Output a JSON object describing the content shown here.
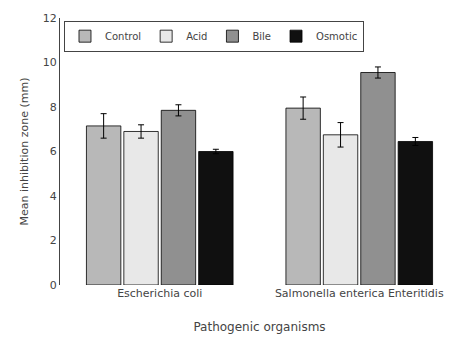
{
  "chart_data": {
    "type": "bar",
    "categories": [
      "Escherichia coli",
      "Salmonella enterica Enteritidis"
    ],
    "series": [
      {
        "name": "Control",
        "color": "#b8b8b8",
        "values": [
          7.15,
          7.95
        ],
        "errors": [
          0.55,
          0.5
        ]
      },
      {
        "name": "Acid",
        "color": "#e8e8e8",
        "values": [
          6.9,
          6.75
        ],
        "errors": [
          0.3,
          0.55
        ]
      },
      {
        "name": "Bile",
        "color": "#909090",
        "values": [
          7.85,
          9.55
        ],
        "errors": [
          0.25,
          0.25
        ]
      },
      {
        "name": "Osmotic",
        "color": "#101010",
        "values": [
          6.0,
          6.45
        ],
        "errors": [
          0.1,
          0.18
        ]
      }
    ],
    "ylabel": "Mean inhibition zone (mm)",
    "xlabel": "Pathogenic organisms",
    "ylim": [
      0,
      12
    ],
    "yticks": [
      0,
      2,
      4,
      6,
      8,
      10,
      12
    ],
    "grid": false,
    "legend": "upper left"
  }
}
